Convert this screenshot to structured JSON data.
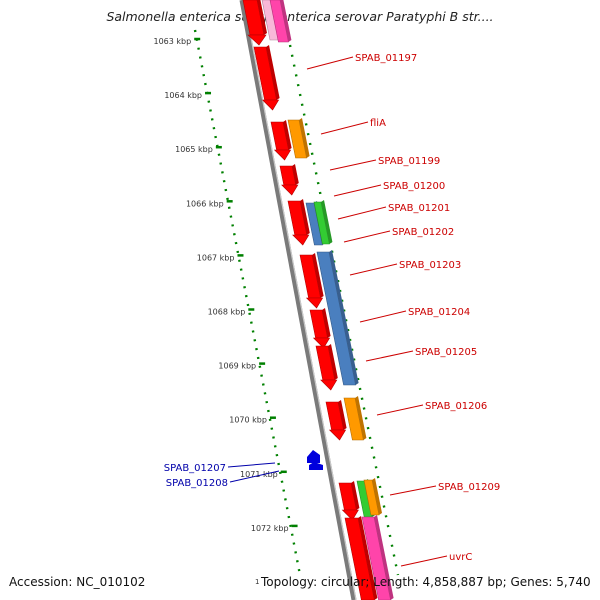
{
  "title": "Salmonella enterica subsp. enterica serovar Paratyphi B str....",
  "footer": {
    "accession": "Accession: NC_010102",
    "mark": "1",
    "summary": "Topology: circular; Length: 4,858,887 bp; Genes: 5,740"
  },
  "colors": {
    "backbone": "#888888",
    "ruler": "#008000",
    "forward_label": "#cc0000",
    "reverse_label": "#0000aa",
    "red": "#ff0000",
    "orange": "#ff9900",
    "blue": "#4a7fbf",
    "green": "#33cc33",
    "pink": "#ff44aa"
  },
  "ruler_ticks": [
    "1063 kbp",
    "1064 kbp",
    "1065 kbp",
    "1066 kbp",
    "1067 kbp",
    "1068 kbp",
    "1069 kbp",
    "1070 kbp",
    "1071 kbp",
    "1072 kbp"
  ],
  "forward_labels": [
    "SPAB_01197",
    "fliA",
    "SPAB_01199",
    "SPAB_01200",
    "SPAB_01201",
    "SPAB_01202",
    "SPAB_01203",
    "SPAB_01204",
    "SPAB_01205",
    "SPAB_01206",
    "SPAB_01209",
    "uvrC"
  ],
  "reverse_labels": [
    "SPAB_01207",
    "SPAB_01208"
  ]
}
